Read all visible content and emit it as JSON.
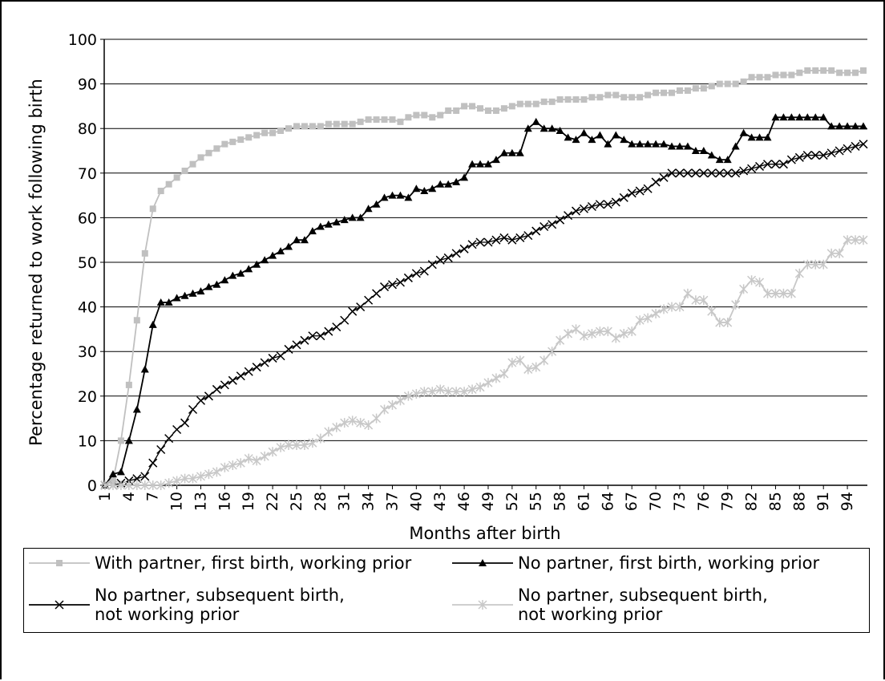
{
  "chart_data": {
    "type": "line",
    "ylabel": "Percentage returned to work following birth",
    "xlabel": "Months after birth",
    "x": [
      1,
      2,
      3,
      4,
      5,
      6,
      7,
      8,
      9,
      10,
      11,
      12,
      13,
      14,
      15,
      16,
      17,
      18,
      19,
      20,
      21,
      22,
      23,
      24,
      25,
      26,
      27,
      28,
      29,
      30,
      31,
      32,
      33,
      34,
      35,
      36,
      37,
      38,
      39,
      40,
      41,
      42,
      43,
      44,
      45,
      46,
      47,
      48,
      49,
      50,
      51,
      52,
      53,
      54,
      55,
      56,
      57,
      58,
      59,
      60,
      61,
      62,
      63,
      64,
      65,
      66,
      67,
      68,
      69,
      70,
      71,
      72,
      73,
      74,
      75,
      76,
      77,
      78,
      79,
      80,
      81,
      82,
      83,
      84,
      85,
      86,
      87,
      88,
      89,
      90,
      91,
      92,
      93,
      94,
      95,
      96
    ],
    "xlim": [
      1,
      96
    ],
    "xticks": [
      1,
      4,
      7,
      10,
      13,
      16,
      19,
      22,
      25,
      28,
      31,
      34,
      37,
      40,
      43,
      46,
      49,
      52,
      55,
      58,
      61,
      64,
      67,
      70,
      73,
      76,
      79,
      82,
      85,
      88,
      91,
      94
    ],
    "ylim": [
      0,
      100
    ],
    "yticks": [
      0,
      10,
      20,
      30,
      40,
      50,
      60,
      70,
      80,
      90,
      100
    ],
    "grid": true,
    "series": [
      {
        "name": "With partner, first birth, working prior",
        "color": "#c0c0c0",
        "marker": "square",
        "values": [
          0,
          1,
          10,
          22.5,
          37,
          52,
          62,
          66,
          67.5,
          69,
          70.5,
          72,
          73.5,
          74.5,
          75.5,
          76.5,
          77,
          77.5,
          78,
          78.5,
          79,
          79,
          79.5,
          80,
          80.5,
          80.5,
          80.5,
          80.5,
          81,
          81,
          81,
          81,
          81.5,
          82,
          82,
          82,
          82,
          81.5,
          82.5,
          83,
          83,
          82.5,
          83,
          84,
          84,
          85,
          85,
          84.5,
          84,
          84,
          84.5,
          85,
          85.5,
          85.5,
          85.5,
          86,
          86,
          86.5,
          86.5,
          86.5,
          86.5,
          87,
          87,
          87.5,
          87.5,
          87,
          87,
          87,
          87.5,
          88,
          88,
          88,
          88.5,
          88.5,
          89,
          89,
          89.5,
          90,
          90,
          90,
          90.5,
          91.5,
          91.5,
          91.5,
          92,
          92,
          92,
          92.5,
          93,
          93,
          93,
          93,
          92.5,
          92.5,
          92.5,
          93
        ]
      },
      {
        "name": "No partner, first birth, working prior",
        "color": "#000000",
        "marker": "triangle",
        "values": [
          0,
          2.5,
          3,
          10,
          17,
          26,
          36,
          41,
          41,
          42,
          42.5,
          43,
          43.5,
          44.5,
          45,
          46,
          47,
          47.5,
          48.5,
          49.5,
          50.5,
          51.5,
          52.5,
          53.5,
          55,
          55,
          57,
          58,
          58.5,
          59,
          59.5,
          60,
          60,
          62,
          63,
          64.5,
          65,
          65,
          64.5,
          66.5,
          66,
          66.5,
          67.5,
          67.5,
          68,
          69,
          72,
          72,
          72,
          73,
          74.5,
          74.5,
          74.5,
          80,
          81.5,
          80,
          80,
          79.5,
          78,
          77.5,
          79,
          77.5,
          78.5,
          76.5,
          78.5,
          77.5,
          76.5,
          76.5,
          76.5,
          76.5,
          76.5,
          76,
          76,
          76,
          75,
          75,
          74,
          73,
          73,
          76,
          79,
          78,
          78,
          78,
          82.5,
          82.5,
          82.5,
          82.5,
          82.5,
          82.5,
          82.5,
          80.5,
          80.5,
          80.5,
          80.5,
          80.5
        ]
      },
      {
        "name": "No partner, subsequent birth, not working prior",
        "color": "#000000",
        "marker": "x",
        "values": [
          0,
          0,
          0.5,
          1,
          1.5,
          2,
          5,
          8,
          10.5,
          12.5,
          14,
          17,
          19,
          20,
          21.5,
          22.5,
          23.5,
          24.5,
          25.5,
          26.5,
          27.5,
          28.5,
          29,
          30.5,
          31.5,
          32.5,
          33.5,
          33.5,
          34.5,
          35.5,
          37,
          39,
          40,
          41.5,
          43,
          44.5,
          45,
          45.5,
          46.5,
          47.5,
          48,
          49.5,
          50.5,
          51,
          52,
          53,
          54,
          54.5,
          54.5,
          55,
          55.5,
          55,
          55.5,
          56,
          57,
          58,
          58.5,
          59.5,
          60.5,
          61.5,
          62,
          62.5,
          63,
          63,
          63.5,
          64.5,
          65.5,
          66,
          66.5,
          68,
          69,
          70,
          70,
          70,
          70,
          70,
          70,
          70,
          70,
          70,
          70.5,
          71,
          71.5,
          72,
          72,
          72,
          73,
          73.5,
          74,
          74,
          74,
          74.5,
          75,
          75.5,
          76,
          76.5
        ]
      },
      {
        "name": "No partner, subsequent birth, not working prior",
        "color": "#c8c8c8",
        "marker": "asterisk",
        "values": [
          0,
          0,
          0,
          0,
          0,
          0,
          0,
          0,
          0.5,
          1,
          1.5,
          1.5,
          2,
          2.5,
          3,
          4,
          4.5,
          5,
          6,
          5.5,
          6.5,
          7.5,
          8.5,
          9,
          9,
          9,
          9.5,
          10.5,
          12,
          13,
          14,
          14.5,
          14,
          13.5,
          15,
          17,
          18,
          19,
          20,
          20.5,
          21,
          21,
          21.5,
          21,
          21,
          21,
          21.5,
          22,
          23,
          24,
          25,
          27.5,
          28,
          26,
          26.5,
          28,
          30,
          32.5,
          34,
          35,
          33.5,
          34,
          34.5,
          34.5,
          33,
          34,
          34.5,
          37,
          37.5,
          38.5,
          39.5,
          40,
          40,
          43,
          41.5,
          41.5,
          39,
          36.5,
          36.5,
          40.5,
          44,
          46,
          45.5,
          43,
          43,
          43,
          43,
          47.5,
          49.5,
          49.5,
          49.5,
          52,
          52,
          55,
          55,
          55
        ]
      }
    ]
  }
}
